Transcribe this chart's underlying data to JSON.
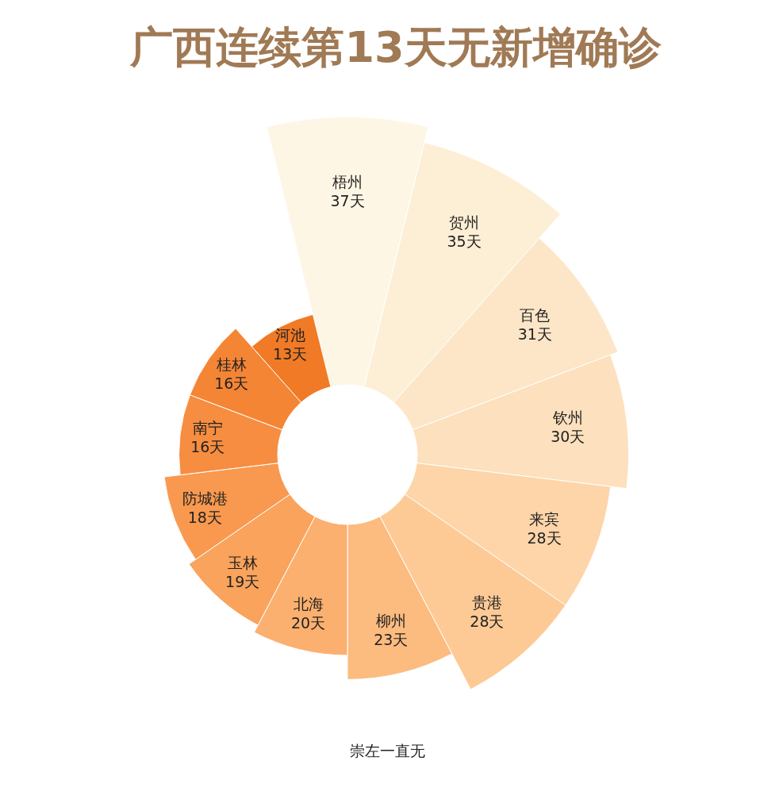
{
  "chart_data": {
    "type": "other",
    "title": "广西连续第13天无新增确诊",
    "categories": [
      "梧州",
      "贺州",
      "百色",
      "钦州",
      "来宾",
      "贵港",
      "柳州",
      "北海",
      "玉林",
      "防城港",
      "南宁",
      "桂林",
      "河池"
    ],
    "values": [
      37,
      35,
      31,
      30,
      28,
      28,
      23,
      20,
      19,
      18,
      16,
      16,
      13
    ],
    "value_labels": [
      "37天",
      "35天",
      "31天",
      "30天",
      "28天",
      "28天",
      "23天",
      "20天",
      "19天",
      "18天",
      "16天",
      "16天",
      "13天"
    ],
    "colors": [
      "#fef6e4",
      "#fdefd6",
      "#fde6c7",
      "#fde0bd",
      "#fdd5a9",
      "#fdca96",
      "#fcbb7f",
      "#fbb06f",
      "#f9a35c",
      "#f8994f",
      "#f68d40",
      "#f48535",
      "#f07a25"
    ],
    "annotations": [
      "崇左一直无"
    ]
  }
}
